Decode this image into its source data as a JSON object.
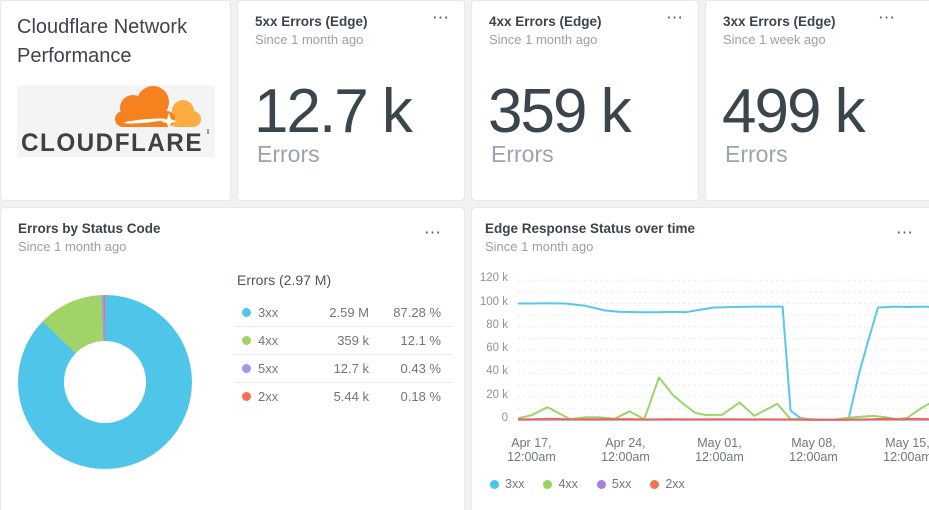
{
  "header_card": {
    "title": "Cloudflare Network Performance",
    "logo_text": "CLOUDFLARE",
    "logo_colors": {
      "cloud": "#f6821f",
      "cloud_light": "#fbad41",
      "wordmark": "#404041"
    }
  },
  "stat_cards": [
    {
      "title": "5xx Errors (Edge)",
      "subtitle": "Since 1 month ago",
      "value": "12.7 k",
      "unit": "Errors",
      "menu_icon": "⋯"
    },
    {
      "title": "4xx Errors (Edge)",
      "subtitle": "Since 1 month ago",
      "value": "359 k",
      "unit": "Errors",
      "menu_icon": "⋯"
    },
    {
      "title": "3xx Errors (Edge)",
      "subtitle": "Since 1 week ago",
      "value": "499 k",
      "unit": "Errors",
      "menu_icon": "⋯"
    }
  ],
  "pie_card": {
    "title": "Errors by Status Code",
    "subtitle": "Since 1 month ago",
    "menu_icon": "⋯",
    "legend_title": "Errors (2.97 M)"
  },
  "time_card": {
    "title": "Edge Response Status over time",
    "subtitle": "Since 1 month ago",
    "menu_icon": "⋯"
  },
  "chart_data": [
    {
      "type": "pie",
      "title": "Errors by Status Code",
      "donut": true,
      "total_label": "Errors (2.97 M)",
      "total_value": "2.97 M",
      "segments": [
        {
          "label": "3xx",
          "value": "2.59 M",
          "percent": 87.28,
          "percent_label": "87.28 %",
          "color": "#4fc6e9"
        },
        {
          "label": "4xx",
          "value": "359 k",
          "percent": 12.1,
          "percent_label": "12.1 %",
          "color": "#a0d468"
        },
        {
          "label": "5xx",
          "value": "12.7 k",
          "percent": 0.43,
          "percent_label": "0.43 %",
          "color": "#ac92ec"
        },
        {
          "label": "2xx",
          "value": "5.44 k",
          "percent": 0.18,
          "percent_label": "0.18 %",
          "color": "#fc6e51"
        }
      ]
    },
    {
      "type": "line",
      "title": "Edge Response Status over time",
      "x_unit": "days (0 = Apr 16, 12:00am)",
      "y_unit": "thousands of responses",
      "ylim": [
        0,
        120
      ],
      "grid": "dotted, every 10k",
      "legend_position": "bottom-left",
      "y_ticks": [
        {
          "v": 120,
          "label": "120 k"
        },
        {
          "v": 100,
          "label": "100 k"
        },
        {
          "v": 80,
          "label": "80 k"
        },
        {
          "v": 60,
          "label": "60 k"
        },
        {
          "v": 40,
          "label": "40 k"
        },
        {
          "v": 20,
          "label": "20 k"
        },
        {
          "v": 0,
          "label": "0"
        }
      ],
      "x_ticks": [
        {
          "day": 1,
          "date": "Apr 17,",
          "time": "12:00am"
        },
        {
          "day": 8,
          "date": "Apr 24,",
          "time": "12:00am"
        },
        {
          "day": 15,
          "date": "May 01,",
          "time": "12:00am"
        },
        {
          "day": 22,
          "date": "May 08,",
          "time": "12:00am"
        },
        {
          "day": 29,
          "date": "May 15,",
          "time": "12:00am"
        }
      ],
      "legend": [
        {
          "label": "3xx",
          "color": "#46c6ee"
        },
        {
          "label": "4xx",
          "color": "#93d35f"
        },
        {
          "label": "5xx",
          "color": "#a87fd9"
        },
        {
          "label": "2xx",
          "color": "#f3724f"
        }
      ],
      "series": [
        {
          "name": "3xx",
          "color": "#56c8ee",
          "points": [
            [
              0,
              100
            ],
            [
              1,
              100
            ],
            [
              2,
              100.3
            ],
            [
              3.5,
              100
            ],
            [
              5,
              98
            ],
            [
              6.5,
              94
            ],
            [
              7.5,
              93
            ],
            [
              9,
              92.5
            ],
            [
              10.5,
              92.5
            ],
            [
              11.5,
              93
            ],
            [
              12.5,
              92.5
            ],
            [
              13.5,
              94.5
            ],
            [
              14.5,
              96.5
            ],
            [
              16,
              97
            ],
            [
              17.5,
              97.3
            ],
            [
              19,
              97.3
            ],
            [
              19.7,
              97.3
            ],
            [
              20.3,
              8
            ],
            [
              21,
              2
            ],
            [
              21.8,
              0.4
            ],
            [
              23,
              0.3
            ],
            [
              24.6,
              0.3
            ],
            [
              25.4,
              40
            ],
            [
              26,
              65
            ],
            [
              26.8,
              96.5
            ],
            [
              28,
              97.3
            ],
            [
              29,
              97
            ],
            [
              30,
              97.3
            ],
            [
              30.8,
              97
            ]
          ]
        },
        {
          "name": "4xx",
          "color": "#9ed36a",
          "points": [
            [
              0,
              1.5
            ],
            [
              1,
              4
            ],
            [
              2.2,
              11
            ],
            [
              3.9,
              0.7
            ],
            [
              5,
              2.3
            ],
            [
              6,
              2.3
            ],
            [
              7.2,
              1
            ],
            [
              8.3,
              7.5
            ],
            [
              9.4,
              0.6
            ],
            [
              10.5,
              36.5
            ],
            [
              11.5,
              22
            ],
            [
              12.3,
              14
            ],
            [
              13.2,
              6
            ],
            [
              14,
              4.3
            ],
            [
              15.2,
              4.5
            ],
            [
              16.5,
              15
            ],
            [
              17.6,
              3.5
            ],
            [
              19.3,
              14
            ],
            [
              20.3,
              0.7
            ],
            [
              21.3,
              1
            ],
            [
              22.3,
              0.5
            ],
            [
              23.6,
              0.4
            ],
            [
              24.6,
              2
            ],
            [
              26.4,
              3.5
            ],
            [
              27.3,
              2.5
            ],
            [
              28.2,
              0.7
            ],
            [
              29,
              2
            ],
            [
              30,
              10
            ],
            [
              30.8,
              15
            ]
          ]
        },
        {
          "name": "5xx",
          "color": "#ac92ec",
          "points": [
            [
              0,
              0.15
            ],
            [
              5,
              0.15
            ],
            [
              10,
              0.15
            ],
            [
              15,
              0.15
            ],
            [
              20,
              0.15
            ],
            [
              25,
              0.15
            ],
            [
              30.8,
              0.15
            ]
          ]
        },
        {
          "name": "2xx",
          "color": "#e6695c",
          "points": [
            [
              0,
              0.4
            ],
            [
              1.5,
              0.8
            ],
            [
              2.5,
              1
            ],
            [
              4,
              0.5
            ],
            [
              6,
              0.6
            ],
            [
              8,
              0.8
            ],
            [
              9.5,
              0.4
            ],
            [
              11,
              0.6
            ],
            [
              13,
              0.5
            ],
            [
              15,
              0.6
            ],
            [
              17,
              0.5
            ],
            [
              19,
              0.5
            ],
            [
              20.5,
              0.4
            ],
            [
              22,
              0.25
            ],
            [
              24,
              0.25
            ],
            [
              26,
              0.5
            ],
            [
              27.5,
              1
            ],
            [
              28.5,
              0.7
            ],
            [
              29.5,
              1
            ],
            [
              30.8,
              0.6
            ]
          ]
        }
      ]
    }
  ]
}
